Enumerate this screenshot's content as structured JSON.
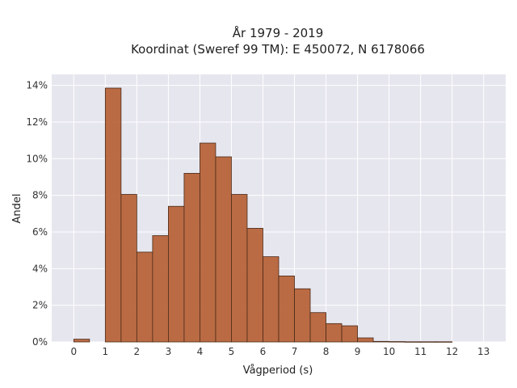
{
  "chart_data": {
    "type": "bar",
    "title_lines": [
      "År 1979 - 2019",
      "Koordinat (Sweref 99 TM): E 450072, N 6178066"
    ],
    "xlabel": "Vågperiod (s)",
    "ylabel": "Andel",
    "xlim": [
      -0.7,
      13.7
    ],
    "ylim": [
      0,
      0.146
    ],
    "x_ticks": [
      0,
      1,
      2,
      3,
      4,
      5,
      6,
      7,
      8,
      9,
      10,
      11,
      12,
      13
    ],
    "x_tick_labels": [
      "0",
      "1",
      "2",
      "3",
      "4",
      "5",
      "6",
      "7",
      "8",
      "9",
      "10",
      "11",
      "12",
      "13"
    ],
    "y_ticks": [
      0,
      0.02,
      0.04,
      0.06,
      0.08,
      0.1,
      0.12,
      0.14
    ],
    "y_tick_labels": [
      "0%",
      "2%",
      "4%",
      "6%",
      "8%",
      "10%",
      "12%",
      "14%"
    ],
    "grid": true,
    "bin_width": 0.5,
    "bins": [
      {
        "start": 0.0,
        "value": 0.0015
      },
      {
        "start": 0.5,
        "value": 0.0
      },
      {
        "start": 1.0,
        "value": 0.1385
      },
      {
        "start": 1.5,
        "value": 0.0805
      },
      {
        "start": 2.0,
        "value": 0.049
      },
      {
        "start": 2.5,
        "value": 0.058
      },
      {
        "start": 3.0,
        "value": 0.074
      },
      {
        "start": 3.5,
        "value": 0.092
      },
      {
        "start": 4.0,
        "value": 0.1085
      },
      {
        "start": 4.5,
        "value": 0.101
      },
      {
        "start": 5.0,
        "value": 0.0805
      },
      {
        "start": 5.5,
        "value": 0.062
      },
      {
        "start": 6.0,
        "value": 0.0465
      },
      {
        "start": 6.5,
        "value": 0.036
      },
      {
        "start": 7.0,
        "value": 0.029
      },
      {
        "start": 7.5,
        "value": 0.016
      },
      {
        "start": 8.0,
        "value": 0.01
      },
      {
        "start": 8.5,
        "value": 0.0088
      },
      {
        "start": 9.0,
        "value": 0.0022
      },
      {
        "start": 9.5,
        "value": 0.0003
      },
      {
        "start": 10.0,
        "value": 0.0002
      },
      {
        "start": 10.5,
        "value": 0.0001
      },
      {
        "start": 11.0,
        "value": 0.0001
      },
      {
        "start": 11.5,
        "value": 0.0001
      }
    ],
    "colors": {
      "plot_background": "#e6e6ef",
      "grid": "#ffffff",
      "bar_fill": "#b7643a",
      "bar_stroke": "#4a2a18"
    }
  }
}
